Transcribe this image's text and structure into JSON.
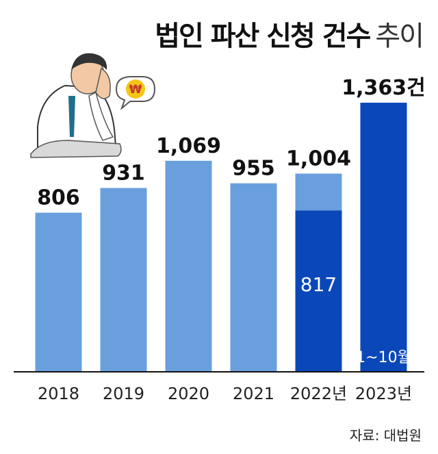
{
  "title": {
    "bold": "법인 파산 신청 건수",
    "light": "추이"
  },
  "source": "자료: 대법원",
  "colors": {
    "light_bar": "#6a9fdd",
    "dark_bar": "#0a47b8",
    "baseline": "#111111",
    "label": "#111111",
    "inner_label": "#ffffff"
  },
  "chart_data": {
    "type": "bar",
    "categories": [
      "2018",
      "2019",
      "2020",
      "2021",
      "2022년",
      "2023년"
    ],
    "values": [
      806,
      931,
      1069,
      955,
      1004,
      1363
    ],
    "value_labels": [
      "806",
      "931",
      "1,069",
      "955",
      "1,004",
      "1,363건"
    ],
    "overlay": {
      "category": "2022년",
      "value": 817,
      "value_label": "817"
    },
    "annotation": "1~10월",
    "annotation_category": "2023년",
    "highlight_category": "2023년",
    "ylim": [
      0,
      1363
    ],
    "grid": false,
    "legend": "none"
  },
  "illustration": {
    "description_icon": "stressed-businessman-icon",
    "speech_bubble_symbol": "₩"
  }
}
